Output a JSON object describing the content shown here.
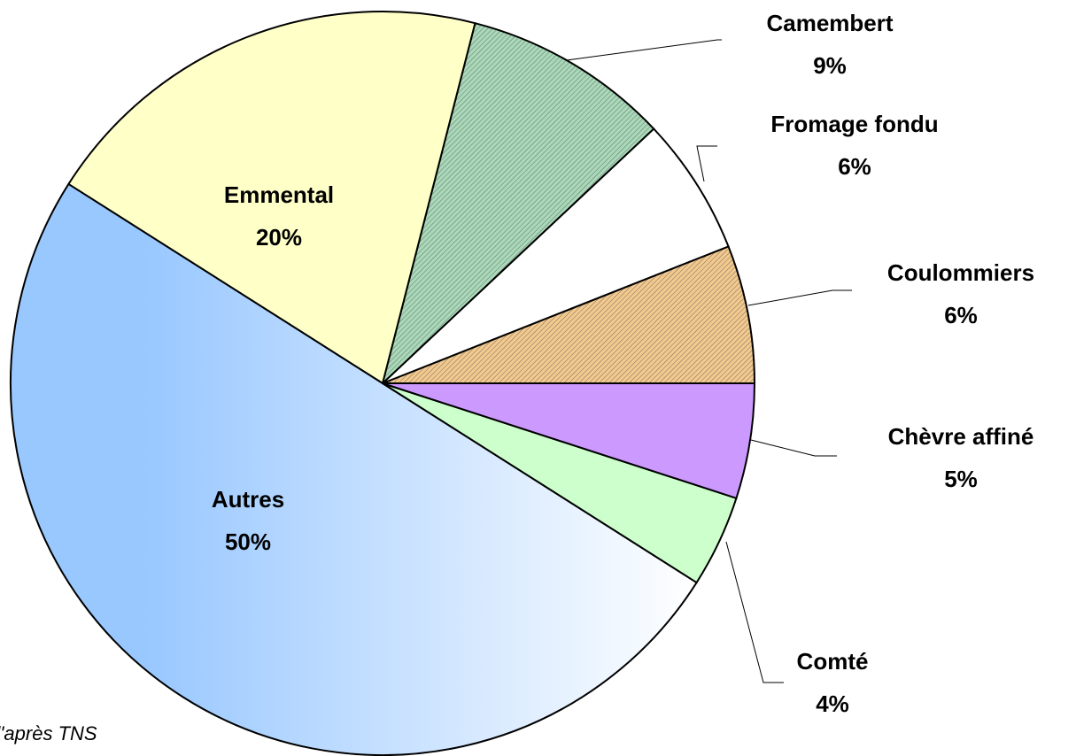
{
  "chart_data": {
    "type": "pie",
    "categories": [
      "Coulommiers",
      "Fromage fondu",
      "Camembert",
      "Emmental",
      "Autres",
      "Comté",
      "Chèvre affiné"
    ],
    "values": [
      6,
      6,
      9,
      20,
      50,
      4,
      5
    ],
    "value_labels": [
      "6%",
      "6%",
      "9%",
      "20%",
      "50%",
      "4%",
      "5%"
    ],
    "colors": [
      "#f3c98e",
      "#ffffff",
      "#a9d9b9",
      "#ffffc8",
      "#99c8ff",
      "#ccffcc",
      "#cc99ff"
    ],
    "hatched": [
      true,
      false,
      true,
      false,
      false,
      false,
      false
    ],
    "source": "d'après TNS"
  }
}
